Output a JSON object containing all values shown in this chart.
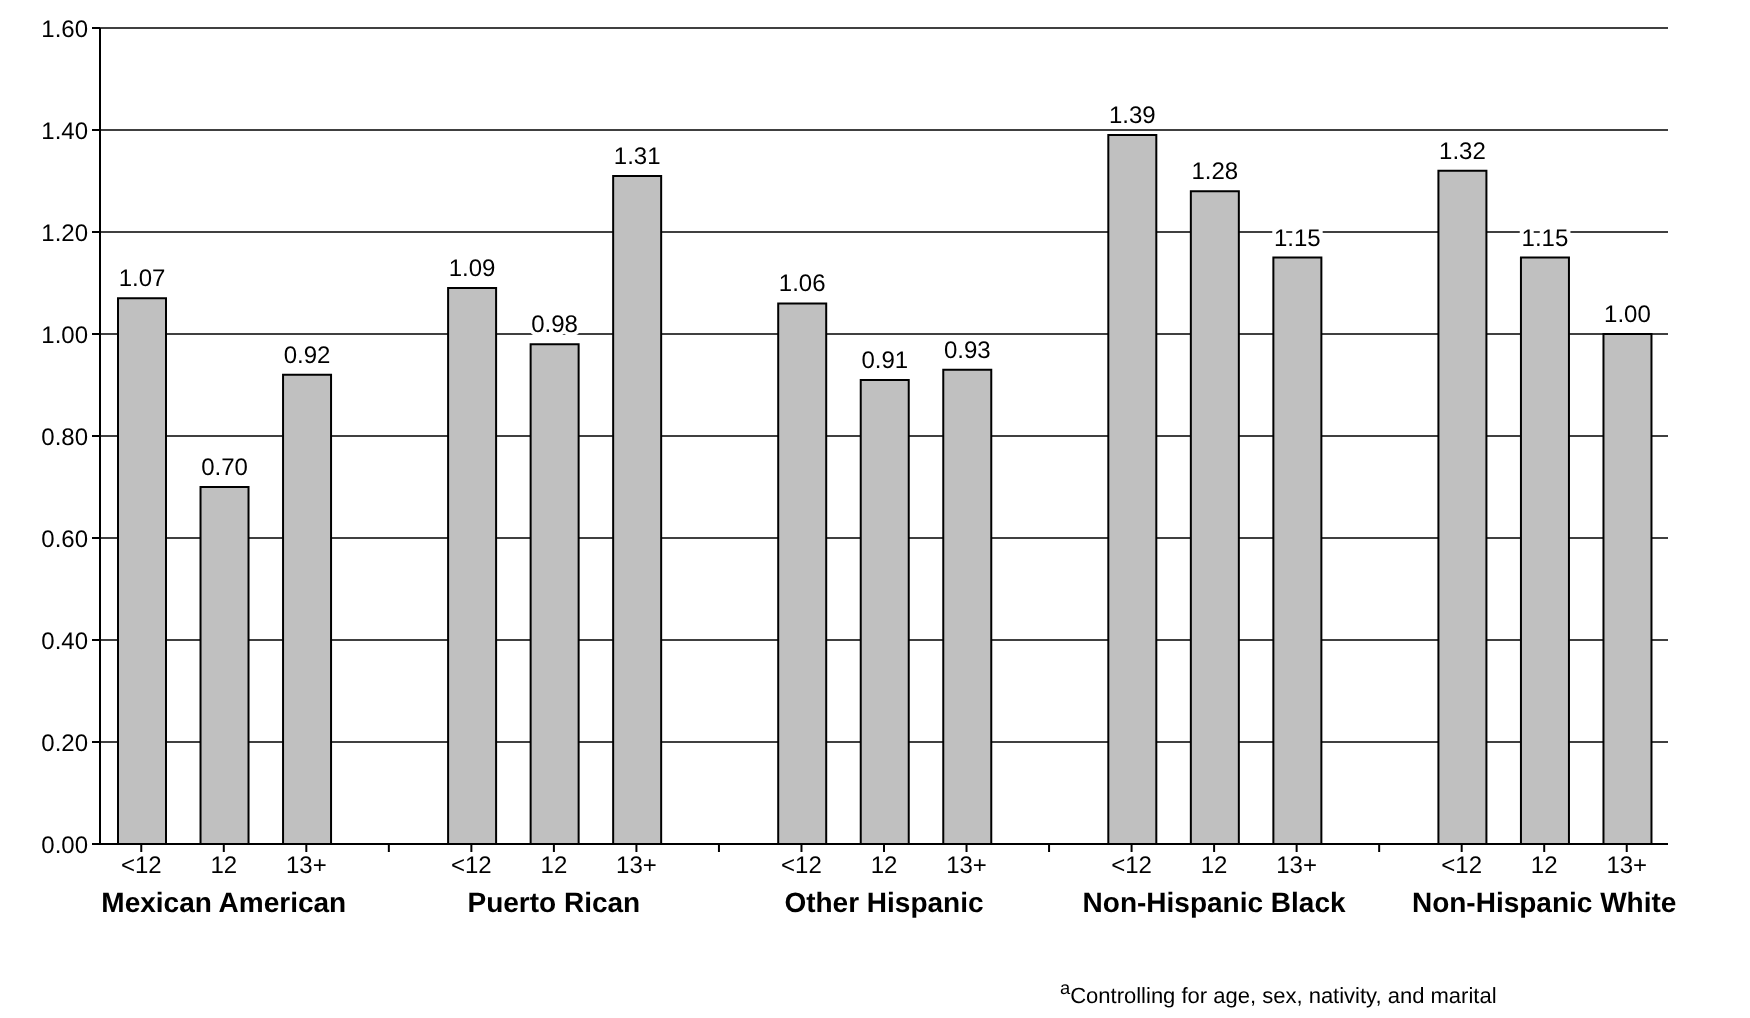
{
  "chart_data": {
    "type": "bar",
    "categories": [
      "<12",
      "12",
      "13+",
      null,
      "<12",
      "12",
      "13+",
      null,
      "<12",
      "12",
      "13+",
      null,
      "<12",
      "12",
      "13+",
      null,
      "<12",
      "12",
      "13+"
    ],
    "values": [
      1.07,
      0.7,
      0.92,
      null,
      1.09,
      0.98,
      1.31,
      null,
      1.06,
      0.91,
      0.93,
      null,
      1.39,
      1.28,
      1.15,
      null,
      1.32,
      1.15,
      1.0
    ],
    "value_labels": [
      "1.07",
      "0.70",
      "0.92",
      null,
      "1.09",
      "0.98",
      "1.31",
      null,
      "1.06",
      "0.91",
      "0.93",
      null,
      "1.39",
      "1.28",
      "1.15",
      null,
      "1.32",
      "1.15",
      "1.00"
    ],
    "color": "#c0c0c0",
    "ylim": [
      0,
      1.6
    ],
    "yticks": [
      {
        "value": 0,
        "label": "0.00"
      },
      {
        "value": 0.2,
        "label": "0.20"
      },
      {
        "value": 0.4,
        "label": "0.40"
      },
      {
        "value": 0.6,
        "label": "0.60"
      },
      {
        "value": 0.8,
        "label": "0.80"
      },
      {
        "value": 1.0,
        "label": "1.00"
      },
      {
        "value": 1.2,
        "label": "1.20"
      },
      {
        "value": 1.4,
        "label": "1.40"
      },
      {
        "value": 1.6,
        "label": "1.60"
      }
    ],
    "grid": "y",
    "annotations": [
      "Mexican American",
      "Puerto Rican",
      "Other Hispanic",
      "Non-Hispanic Black",
      "Non-Hispanic White",
      "$^{a}$Controlling for age, sex, nativity, and marital"
    ]
  }
}
